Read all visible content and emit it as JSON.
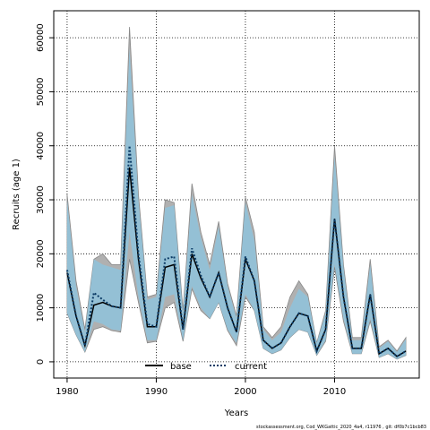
{
  "chart_data": {
    "type": "band-line",
    "xlabel": "Years",
    "ylabel": "Recruits (age 1)",
    "footnote": "stockassessment.org, Cod_WKGattic_2020_4a4, r11976 , git: df0b7c1bcb83",
    "x": [
      1980,
      1981,
      1982,
      1983,
      1984,
      1985,
      1986,
      1987,
      1988,
      1989,
      1990,
      1991,
      1992,
      1993,
      1994,
      1995,
      1996,
      1997,
      1998,
      1999,
      2000,
      2001,
      2002,
      2003,
      2004,
      2005,
      2006,
      2007,
      2008,
      2009,
      2010,
      2011,
      2012,
      2013,
      2014,
      2015,
      2016,
      2017,
      2018
    ],
    "xlim": [
      1978.5,
      2019.5
    ],
    "xticks": [
      1980,
      1990,
      2000,
      2010
    ],
    "ylim": [
      -3000,
      65000
    ],
    "yticks": [
      0,
      10000,
      20000,
      30000,
      40000,
      50000,
      60000
    ],
    "grid": true,
    "legend": "bottom",
    "series": [
      {
        "name": "base",
        "color": "#000000",
        "band_color": "#b0b0b0",
        "dash": "solid",
        "values": [
          16500,
          8500,
          3000,
          10500,
          11000,
          10300,
          10000,
          36000,
          19000,
          6500,
          6500,
          17500,
          18000,
          6000,
          20000,
          15500,
          12000,
          16500,
          10000,
          5500,
          19000,
          15000,
          4000,
          2500,
          3500,
          6500,
          9000,
          8500,
          2000,
          6000,
          26500,
          12000,
          2500,
          2500,
          12500,
          1500,
          2500,
          1000,
          2000
        ],
        "upper": [
          31000,
          15000,
          6000,
          19000,
          20000,
          18000,
          18000,
          62000,
          31000,
          12000,
          12500,
          30000,
          29500,
          9500,
          33000,
          24000,
          18000,
          26000,
          14500,
          8500,
          30500,
          24000,
          6500,
          4500,
          6500,
          12000,
          15000,
          12500,
          3500,
          9500,
          40000,
          18000,
          4500,
          4500,
          19000,
          2800,
          4000,
          2000,
          4500
        ],
        "lower": [
          9000,
          5000,
          1800,
          6000,
          6500,
          5800,
          5500,
          19000,
          11000,
          3500,
          3800,
          10000,
          11000,
          3800,
          13500,
          9500,
          8000,
          11000,
          5800,
          3000,
          12000,
          9500,
          2500,
          1500,
          2200,
          4500,
          6000,
          5500,
          1200,
          3800,
          17500,
          7500,
          1500,
          1500,
          7500,
          800,
          1500,
          500,
          1200
        ]
      },
      {
        "name": "current",
        "color": "#0b3b66",
        "band_color": "#8fc3dc",
        "dash": "dotted",
        "values": [
          17000,
          8500,
          3000,
          12800,
          11500,
          10300,
          10000,
          40000,
          20000,
          7000,
          6500,
          19000,
          19500,
          6000,
          21000,
          16000,
          12000,
          16500,
          10000,
          5500,
          19500,
          15000,
          4000,
          2500,
          3500,
          6500,
          9000,
          8500,
          2000,
          6000,
          26500,
          12000,
          2500,
          2500,
          12500,
          1500,
          2500,
          1000,
          2000
        ],
        "upper": [
          30000,
          14000,
          5500,
          19000,
          18000,
          17500,
          17000,
          58000,
          30000,
          11500,
          12000,
          28500,
          29000,
          9000,
          31000,
          23000,
          17000,
          25000,
          14000,
          8000,
          29500,
          22500,
          6000,
          4000,
          5500,
          10000,
          13500,
          12000,
          3500,
          9000,
          38000,
          17500,
          4000,
          4000,
          18000,
          2500,
          3800,
          1800,
          4200
        ],
        "lower": [
          9000,
          5000,
          1800,
          7500,
          7000,
          6000,
          5800,
          24000,
          12000,
          4000,
          4000,
          12000,
          12500,
          4000,
          14000,
          10000,
          8000,
          11000,
          6000,
          3500,
          12500,
          9500,
          2500,
          1500,
          2200,
          4500,
          6000,
          5500,
          1200,
          4000,
          18000,
          8000,
          1500,
          1500,
          8000,
          800,
          1500,
          500,
          1200
        ]
      }
    ]
  }
}
